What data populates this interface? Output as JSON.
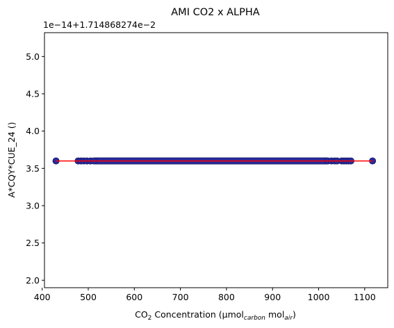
{
  "chart_data": {
    "type": "scatter",
    "title": "AMI CO2 x ALPHA",
    "xlabel": {
      "main": "CO",
      "sub2": "2",
      "mid": " Concentration (µmol",
      "sub_carbon": "carbon",
      "mid2": " mol",
      "sub_air": "air",
      "end": ")"
    },
    "ylabel": "A*CQY*CUE_24 ()",
    "y_offset_label": "1e−14+1.714868274e−2",
    "xlim": [
      405,
      1150
    ],
    "ylim": [
      1.9,
      5.32
    ],
    "x_ticks": [
      400,
      500,
      600,
      700,
      800,
      900,
      1000,
      1100
    ],
    "x_tick_labels": [
      "400",
      "500",
      "600",
      "700",
      "800",
      "900",
      "1000",
      "1100"
    ],
    "y_ticks": [
      2.0,
      2.5,
      3.0,
      3.5,
      4.0,
      4.5,
      5.0
    ],
    "y_tick_labels": [
      "2.0",
      "2.5",
      "3.0",
      "3.5",
      "4.0",
      "4.5",
      "5.0"
    ],
    "grid": false,
    "legend": "none",
    "series": [
      {
        "type": "scatter",
        "color": "#2a2a9a",
        "y": 3.6,
        "x": [
          430,
          478,
          484,
          490,
          497,
          505,
          512,
          1020,
          1028,
          1035,
          1040,
          1050,
          1055,
          1060,
          1065,
          1070,
          1117
        ],
        "dense_band": [
          515,
          1018
        ]
      },
      {
        "type": "line",
        "color": "#ff0000",
        "x": [
          430,
          1117
        ],
        "y": [
          3.6,
          3.6
        ]
      }
    ]
  }
}
